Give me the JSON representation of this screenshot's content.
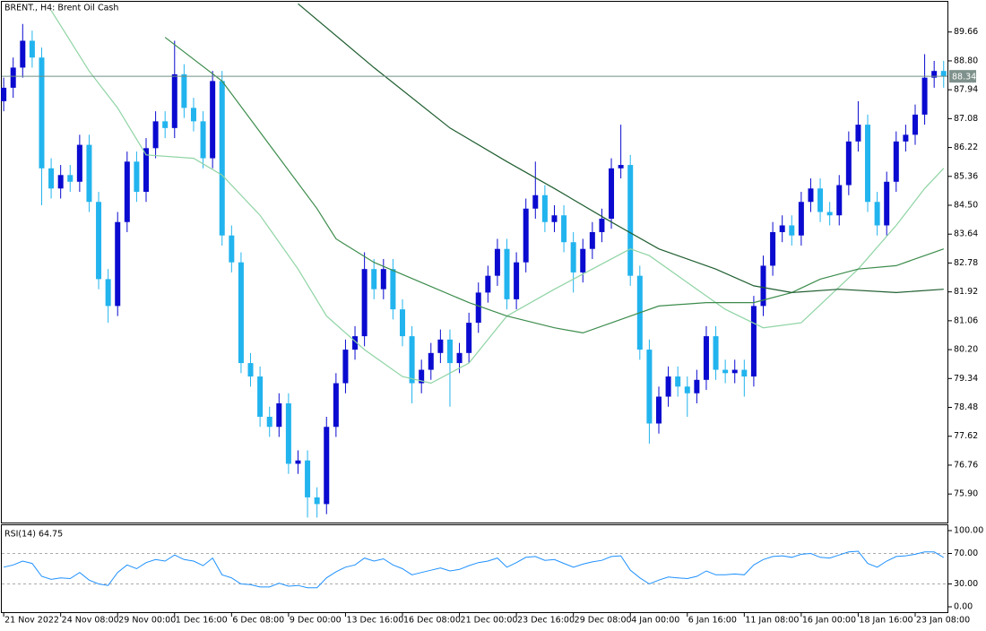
{
  "chart_data": [
    {
      "type": "candlestick",
      "title": "BRENT., H4: Brent Oil Cash",
      "up_color": "#0a0ad0",
      "down_color": "#22b4ee",
      "xlim": [
        -0.2,
        99.4
      ],
      "xticks": [
        {
          "value": 0,
          "label": "21 Nov 2022"
        },
        {
          "value": 6,
          "label": "24 Nov 08:00"
        },
        {
          "value": 12,
          "label": "29 Nov 00:00"
        },
        {
          "value": 18,
          "label": "1 Dec 16:00"
        },
        {
          "value": 24,
          "label": "6 Dec 08:00"
        },
        {
          "value": 30,
          "label": "9 Dec 00:00"
        },
        {
          "value": 36,
          "label": "13 Dec 16:00"
        },
        {
          "value": 42,
          "label": "16 Dec 08:00"
        },
        {
          "value": 48,
          "label": "21 Dec 00:00"
        },
        {
          "value": 54,
          "label": "23 Dec 16:00"
        },
        {
          "value": 60,
          "label": "29 Dec 08:00"
        },
        {
          "value": 66,
          "label": "4 Jan 00:00"
        },
        {
          "value": 72,
          "label": "6 Jan 16:00"
        },
        {
          "value": 78,
          "label": "11 Jan 08:00"
        },
        {
          "value": 84,
          "label": "16 Jan 00:00"
        },
        {
          "value": 90,
          "label": "18 Jan 16:00"
        },
        {
          "value": 96,
          "label": "23 Jan 08:00"
        }
      ],
      "ylim": [
        75.05,
        90.56
      ],
      "yticks": [
        89.66,
        {
          "value": 88.8,
          "label": "88.80"
        },
        87.94,
        87.08,
        86.22,
        85.36,
        {
          "value": 84.5,
          "label": "84.50"
        },
        83.64,
        82.78,
        81.92,
        81.06,
        {
          "value": 80.2,
          "label": "80.20"
        },
        79.34,
        78.48,
        77.62,
        76.76,
        {
          "value": 75.9,
          "label": "75.90"
        }
      ],
      "grid": false,
      "current_price": 88.34,
      "open": [
        87.6,
        88.0,
        88.6,
        89.4,
        88.9,
        85.6,
        85.0,
        85.4,
        85.2,
        86.3,
        84.6,
        82.3,
        81.5,
        84.0,
        85.8,
        84.9,
        86.2,
        87.0,
        86.8,
        88.4,
        87.4,
        87.0,
        85.9,
        88.2,
        83.6,
        82.8,
        79.8,
        79.4,
        78.2,
        77.9,
        78.6,
        76.8,
        76.9,
        75.8,
        75.6,
        77.9,
        79.2,
        80.2,
        80.6,
        82.6,
        82.0,
        82.6,
        81.4,
        80.6,
        79.2,
        79.6,
        80.1,
        80.5,
        79.8,
        80.1,
        81.0,
        81.9,
        82.4,
        83.2,
        81.7,
        82.8,
        84.4,
        84.8,
        84.0,
        84.2,
        83.4,
        82.5,
        83.2,
        83.7,
        84.1,
        85.6,
        85.7,
        82.4,
        80.2,
        78.0,
        78.8,
        79.4,
        79.1,
        78.9,
        79.3,
        80.6,
        79.6,
        79.5,
        79.6,
        79.4,
        81.5,
        82.7,
        83.7,
        83.9,
        83.6,
        84.6,
        85.0,
        84.3,
        84.2,
        85.1,
        86.4,
        86.9,
        84.6,
        83.9,
        85.2,
        86.4,
        86.6,
        87.2,
        88.3,
        88.5
      ],
      "high": [
        88.3,
        88.9,
        89.9,
        89.7,
        89.2,
        85.9,
        85.7,
        85.7,
        86.6,
        86.6,
        84.9,
        82.6,
        84.3,
        86.1,
        86.1,
        86.5,
        87.3,
        87.3,
        89.4,
        88.7,
        87.7,
        87.3,
        88.5,
        88.5,
        83.9,
        83.1,
        80.1,
        79.7,
        78.5,
        78.9,
        78.9,
        77.2,
        77.2,
        76.1,
        78.2,
        79.5,
        80.5,
        80.9,
        83.1,
        82.9,
        82.9,
        82.9,
        81.7,
        80.9,
        79.9,
        80.4,
        80.8,
        80.8,
        80.4,
        81.3,
        82.2,
        82.7,
        83.5,
        83.5,
        83.1,
        84.7,
        85.8,
        85.1,
        84.5,
        84.5,
        83.7,
        83.5,
        84.0,
        84.4,
        85.9,
        86.9,
        86.0,
        82.7,
        80.5,
        79.1,
        79.7,
        79.7,
        79.4,
        79.6,
        80.9,
        80.9,
        79.9,
        79.9,
        79.9,
        81.8,
        83.0,
        84.0,
        84.2,
        84.2,
        84.9,
        85.3,
        85.3,
        84.6,
        85.4,
        86.7,
        87.6,
        87.2,
        84.9,
        85.5,
        86.7,
        86.9,
        87.5,
        89.0,
        88.8,
        88.8
      ],
      "low": [
        87.3,
        87.7,
        88.3,
        88.6,
        84.5,
        84.7,
        84.7,
        84.9,
        84.9,
        84.3,
        82.0,
        81.0,
        81.2,
        83.7,
        84.6,
        84.6,
        85.9,
        86.5,
        86.5,
        87.1,
        86.7,
        85.6,
        85.6,
        83.3,
        82.5,
        79.5,
        79.1,
        77.9,
        77.6,
        77.6,
        76.5,
        76.5,
        75.2,
        75.2,
        75.3,
        77.6,
        78.9,
        79.9,
        80.3,
        81.7,
        81.7,
        81.1,
        80.3,
        78.6,
        78.9,
        79.3,
        79.8,
        78.5,
        79.5,
        79.8,
        80.7,
        81.6,
        82.1,
        81.4,
        81.4,
        82.5,
        84.1,
        83.7,
        83.7,
        83.1,
        81.9,
        82.2,
        82.9,
        83.4,
        83.8,
        85.3,
        82.1,
        79.9,
        77.4,
        77.7,
        78.5,
        78.8,
        78.2,
        78.6,
        79.0,
        79.3,
        79.2,
        79.2,
        78.8,
        79.1,
        81.2,
        82.4,
        83.4,
        83.3,
        83.3,
        84.3,
        84.0,
        83.9,
        83.9,
        84.8,
        86.1,
        84.3,
        83.6,
        83.6,
        84.9,
        86.1,
        86.3,
        86.9,
        88.0,
        88.0
      ],
      "close": [
        88.0,
        88.6,
        89.4,
        88.9,
        85.6,
        85.0,
        85.4,
        85.2,
        86.3,
        84.6,
        82.3,
        81.5,
        84.0,
        85.8,
        84.9,
        86.2,
        87.0,
        86.8,
        88.4,
        87.4,
        87.0,
        85.9,
        88.2,
        83.6,
        82.8,
        79.8,
        79.4,
        78.2,
        77.9,
        78.6,
        76.8,
        76.9,
        75.8,
        75.6,
        77.9,
        79.2,
        80.2,
        80.6,
        82.6,
        82.0,
        82.6,
        81.4,
        80.6,
        79.2,
        79.6,
        80.1,
        80.5,
        79.8,
        80.1,
        81.0,
        81.9,
        82.4,
        83.2,
        81.7,
        82.8,
        84.4,
        84.8,
        84.0,
        84.2,
        83.4,
        82.5,
        83.2,
        83.7,
        84.1,
        85.6,
        85.7,
        82.4,
        80.2,
        78.0,
        78.8,
        79.4,
        79.1,
        78.9,
        79.3,
        80.6,
        79.6,
        79.5,
        79.6,
        79.4,
        81.5,
        82.7,
        83.7,
        83.9,
        83.6,
        84.6,
        85.0,
        84.3,
        84.2,
        85.1,
        86.4,
        86.9,
        84.6,
        83.9,
        85.2,
        86.4,
        86.6,
        87.2,
        88.3,
        88.5,
        88.34
      ],
      "series": [
        {
          "color": "#8fd4a4",
          "x": [
            5,
            9,
            12,
            15,
            20,
            23,
            27,
            31,
            34,
            38,
            42,
            45,
            49,
            53,
            58,
            62,
            66,
            68,
            72,
            76,
            80,
            84,
            87,
            90,
            94,
            97,
            99
          ],
          "values": [
            90.3,
            88.5,
            87.4,
            86.0,
            85.9,
            85.4,
            84.2,
            82.6,
            81.2,
            80.2,
            79.4,
            79.2,
            79.8,
            81.2,
            82.0,
            82.6,
            83.2,
            83.0,
            82.2,
            81.4,
            80.85,
            81.0,
            81.8,
            82.6,
            83.9,
            85.0,
            85.6
          ]
        },
        {
          "color": "#3c8c4c",
          "x": [
            17,
            23,
            28,
            33,
            35,
            39,
            44,
            49,
            53,
            58,
            61,
            65,
            69,
            74,
            79,
            83,
            86,
            90,
            94,
            98,
            99
          ],
          "values": [
            89.5,
            88.2,
            86.3,
            84.4,
            83.5,
            82.8,
            82.2,
            81.6,
            81.2,
            80.85,
            80.7,
            81.1,
            81.5,
            81.6,
            81.6,
            81.9,
            82.3,
            82.6,
            82.7,
            83.1,
            83.2
          ]
        },
        {
          "color": "#1f5e30",
          "x": [
            31,
            39,
            47,
            53,
            58,
            64,
            69,
            75,
            79,
            83,
            88,
            94,
            99
          ],
          "values": [
            90.5,
            88.6,
            86.8,
            85.8,
            85.0,
            84.0,
            83.2,
            82.6,
            82.1,
            81.9,
            82.0,
            81.9,
            82.0
          ]
        }
      ]
    },
    {
      "type": "line",
      "title": "RSI(14) 64.75",
      "color": "#1e90ff",
      "ylim": [
        -7.06,
        107.06
      ],
      "yticks": [
        {
          "value": 100,
          "label": "100.00"
        },
        {
          "value": 70,
          "label": "70.00"
        },
        {
          "value": 30,
          "label": "30.00"
        },
        {
          "value": 0,
          "label": "0.00"
        }
      ],
      "levels": [
        70,
        30
      ],
      "values": [
        52,
        55,
        60,
        57,
        40,
        36,
        38,
        37,
        45,
        35,
        30,
        28,
        45,
        55,
        50,
        58,
        62,
        60,
        68,
        62,
        60,
        54,
        64,
        42,
        38,
        30,
        29,
        26,
        26,
        31,
        27,
        28,
        25,
        25,
        38,
        46,
        52,
        55,
        64,
        60,
        63,
        55,
        50,
        42,
        45,
        48,
        51,
        47,
        49,
        54,
        58,
        60,
        64,
        52,
        58,
        65,
        66,
        61,
        62,
        57,
        52,
        56,
        59,
        61,
        66,
        67,
        48,
        38,
        30,
        35,
        39,
        38,
        37,
        40,
        47,
        42,
        42,
        43,
        42,
        55,
        62,
        66,
        67,
        65,
        69,
        70,
        65,
        64,
        68,
        72,
        73,
        57,
        52,
        60,
        66,
        67,
        69,
        72,
        72,
        64.75
      ]
    }
  ]
}
